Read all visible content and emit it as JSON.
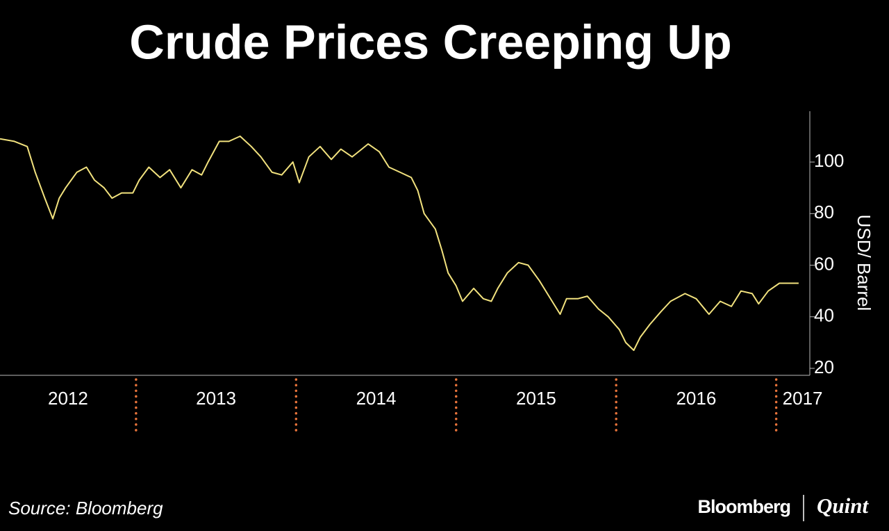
{
  "chart_data": {
    "type": "line",
    "title": "Crude Prices Creeping Up",
    "y_label": "USD/ Barrel",
    "source": "Source: Bloomberg",
    "branding": [
      "Bloomberg",
      "Quint"
    ],
    "x": [
      2012.15,
      2012.24,
      2012.32,
      2012.37,
      2012.43,
      2012.48,
      2012.52,
      2012.56,
      2012.63,
      2012.69,
      2012.74,
      2012.8,
      2012.85,
      2012.91,
      2012.98,
      2013.02,
      2013.08,
      2013.15,
      2013.21,
      2013.28,
      2013.35,
      2013.41,
      2013.45,
      2013.52,
      2013.58,
      2013.65,
      2013.72,
      2013.78,
      2013.85,
      2013.91,
      2013.98,
      2014.02,
      2014.08,
      2014.15,
      2014.22,
      2014.28,
      2014.35,
      2014.41,
      2014.45,
      2014.52,
      2014.58,
      2014.65,
      2014.72,
      2014.76,
      2014.8,
      2014.87,
      2014.91,
      2014.95,
      2015.0,
      2015.04,
      2015.11,
      2015.17,
      2015.22,
      2015.26,
      2015.32,
      2015.39,
      2015.45,
      2015.52,
      2015.58,
      2015.65,
      2015.69,
      2015.76,
      2015.82,
      2015.89,
      2015.95,
      2016.02,
      2016.06,
      2016.11,
      2016.15,
      2016.21,
      2016.28,
      2016.34,
      2016.43,
      2016.5,
      2016.58,
      2016.65,
      2016.72,
      2016.78,
      2016.85,
      2016.89,
      2016.95,
      2017.02,
      2017.08,
      2017.14
    ],
    "series": [
      {
        "name": "Crude",
        "color": "#f2e27e",
        "values": [
          109,
          108,
          106,
          96,
          86,
          78,
          86,
          90,
          96,
          98,
          93,
          90,
          86,
          88,
          88,
          93,
          98,
          94,
          97,
          90,
          97,
          95,
          100,
          108,
          108,
          110,
          106,
          102,
          96,
          95,
          100,
          92,
          102,
          106,
          101,
          105,
          102,
          105,
          107,
          104,
          98,
          96,
          94,
          89,
          80,
          74,
          66,
          57,
          52,
          46,
          51,
          47,
          46,
          51,
          57,
          61,
          60,
          54,
          48,
          41,
          47,
          47,
          48,
          43,
          40,
          35,
          30,
          27,
          32,
          37,
          42,
          46,
          49,
          47,
          41,
          46,
          44,
          50,
          49,
          45,
          50,
          53,
          53,
          53
        ]
      }
    ],
    "xlim": [
      2012.15,
      2017.21
    ],
    "xticks": [
      {
        "value": 2012,
        "label": "2012"
      },
      {
        "value": 2013,
        "label": "2013"
      },
      {
        "value": 2014,
        "label": "2014"
      },
      {
        "value": 2015,
        "label": "2015"
      },
      {
        "value": 2016,
        "label": "2016"
      },
      {
        "value": 2017,
        "label": "2017"
      }
    ],
    "separator_color": "#e8743b",
    "ylim": [
      17.3,
      119.7
    ],
    "yticks": [
      20,
      40,
      60,
      80,
      100
    ]
  }
}
